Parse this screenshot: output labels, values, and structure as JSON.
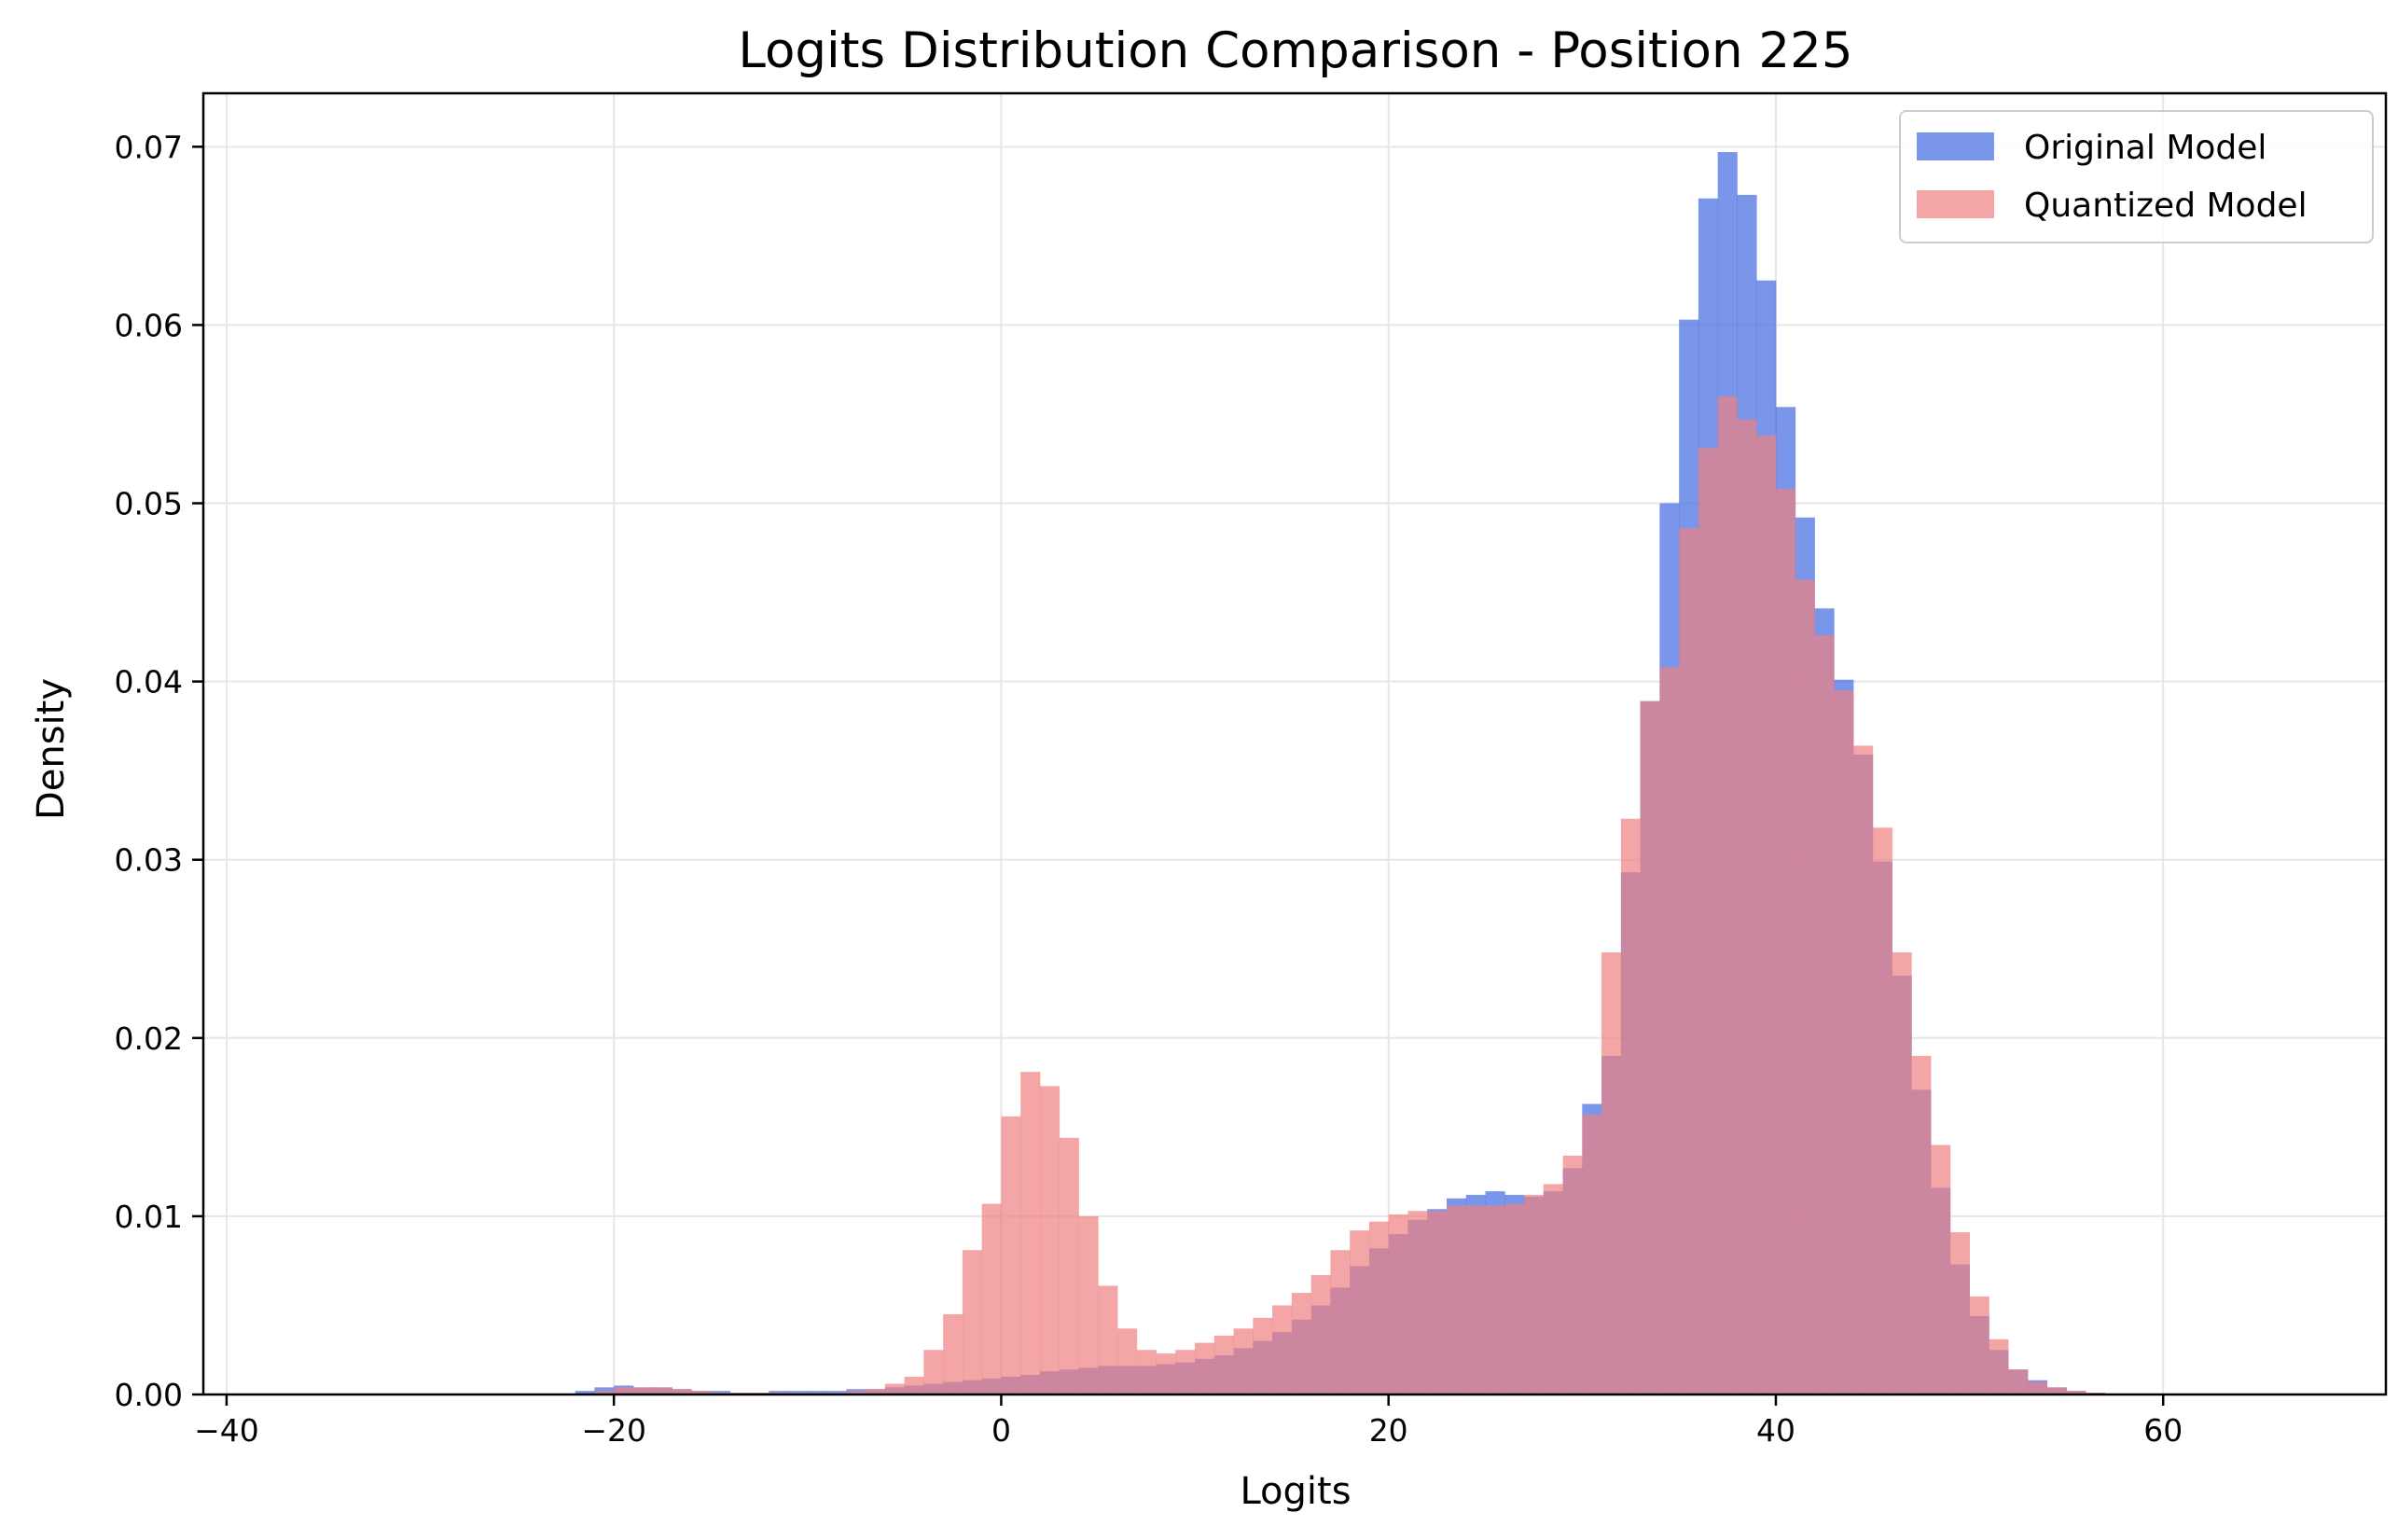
{
  "chart_data": {
    "type": "histogram",
    "title": "Logits Distribution Comparison - Position 225",
    "xlabel": "Logits",
    "ylabel": "Density",
    "xlim": [
      -41.2,
      71.5
    ],
    "ylim": [
      0,
      0.073
    ],
    "x_ticks": [
      -40,
      -20,
      0,
      20,
      40,
      60
    ],
    "x_tick_labels": [
      "−40",
      "−20",
      "0",
      "20",
      "40",
      "60"
    ],
    "y_ticks": [
      0,
      0.01,
      0.02,
      0.03,
      0.04,
      0.05,
      0.06,
      0.07
    ],
    "y_tick_labels": [
      "0.00",
      "0.01",
      "0.02",
      "0.03",
      "0.04",
      "0.05",
      "0.06",
      "0.07"
    ],
    "grid": true,
    "legend_position": "top-right",
    "series": [
      {
        "name": "Original Model",
        "color": "#4169e1",
        "opacity": 0.7,
        "bins": [
          {
            "x0": -22,
            "x1": -21,
            "y": 0.0002
          },
          {
            "x0": -21,
            "x1": -20,
            "y": 0.0004
          },
          {
            "x0": -20,
            "x1": -19,
            "y": 0.0005
          },
          {
            "x0": -19,
            "x1": -18,
            "y": 0.0004
          },
          {
            "x0": -18,
            "x1": -17,
            "y": 0.0004
          },
          {
            "x0": -17,
            "x1": -16,
            "y": 0.0003
          },
          {
            "x0": -16,
            "x1": -15,
            "y": 0.0002
          },
          {
            "x0": -15,
            "x1": -14,
            "y": 0.0002
          },
          {
            "x0": -14,
            "x1": -13,
            "y": 0.0001
          },
          {
            "x0": -13,
            "x1": -12,
            "y": 0.0001
          },
          {
            "x0": -12,
            "x1": -11,
            "y": 0.0002
          },
          {
            "x0": -11,
            "x1": -10,
            "y": 0.0002
          },
          {
            "x0": -10,
            "x1": -9,
            "y": 0.0002
          },
          {
            "x0": -9,
            "x1": -8,
            "y": 0.0002
          },
          {
            "x0": -8,
            "x1": -7,
            "y": 0.0003
          },
          {
            "x0": -7,
            "x1": -6,
            "y": 0.0003
          },
          {
            "x0": -6,
            "x1": -5,
            "y": 0.0004
          },
          {
            "x0": -5,
            "x1": -4,
            "y": 0.0005
          },
          {
            "x0": -4,
            "x1": -3,
            "y": 0.0006
          },
          {
            "x0": -3,
            "x1": -2,
            "y": 0.0007
          },
          {
            "x0": -2,
            "x1": -1,
            "y": 0.0008
          },
          {
            "x0": -1,
            "x1": 0,
            "y": 0.0009
          },
          {
            "x0": 0,
            "x1": 1,
            "y": 0.001
          },
          {
            "x0": 1,
            "x1": 2,
            "y": 0.0011
          },
          {
            "x0": 2,
            "x1": 3,
            "y": 0.0013
          },
          {
            "x0": 3,
            "x1": 4,
            "y": 0.0014
          },
          {
            "x0": 4,
            "x1": 5,
            "y": 0.0015
          },
          {
            "x0": 5,
            "x1": 6,
            "y": 0.0016
          },
          {
            "x0": 6,
            "x1": 7,
            "y": 0.0016
          },
          {
            "x0": 7,
            "x1": 8,
            "y": 0.0016
          },
          {
            "x0": 8,
            "x1": 9,
            "y": 0.0017
          },
          {
            "x0": 9,
            "x1": 10,
            "y": 0.0018
          },
          {
            "x0": 10,
            "x1": 11,
            "y": 0.002
          },
          {
            "x0": 11,
            "x1": 12,
            "y": 0.0022
          },
          {
            "x0": 12,
            "x1": 13,
            "y": 0.0026
          },
          {
            "x0": 13,
            "x1": 14,
            "y": 0.003
          },
          {
            "x0": 14,
            "x1": 15,
            "y": 0.0035
          },
          {
            "x0": 15,
            "x1": 16,
            "y": 0.0042
          },
          {
            "x0": 16,
            "x1": 17,
            "y": 0.005
          },
          {
            "x0": 17,
            "x1": 18,
            "y": 0.006
          },
          {
            "x0": 18,
            "x1": 19,
            "y": 0.0072
          },
          {
            "x0": 19,
            "x1": 20,
            "y": 0.0082
          },
          {
            "x0": 20,
            "x1": 21,
            "y": 0.009
          },
          {
            "x0": 21,
            "x1": 22,
            "y": 0.0098
          },
          {
            "x0": 22,
            "x1": 23,
            "y": 0.0104
          },
          {
            "x0": 23,
            "x1": 24,
            "y": 0.011
          },
          {
            "x0": 24,
            "x1": 25,
            "y": 0.0112
          },
          {
            "x0": 25,
            "x1": 26,
            "y": 0.0114
          },
          {
            "x0": 26,
            "x1": 27,
            "y": 0.0112
          },
          {
            "x0": 27,
            "x1": 28,
            "y": 0.0111
          },
          {
            "x0": 28,
            "x1": 29,
            "y": 0.0114
          },
          {
            "x0": 29,
            "x1": 30,
            "y": 0.0127
          },
          {
            "x0": 30,
            "x1": 31,
            "y": 0.0163
          },
          {
            "x0": 31,
            "x1": 32,
            "y": 0.019
          },
          {
            "x0": 32,
            "x1": 33,
            "y": 0.0293
          },
          {
            "x0": 33,
            "x1": 34,
            "y": 0.0389
          },
          {
            "x0": 34,
            "x1": 35,
            "y": 0.05
          },
          {
            "x0": 35,
            "x1": 36,
            "y": 0.0603
          },
          {
            "x0": 36,
            "x1": 37,
            "y": 0.0671
          },
          {
            "x0": 37,
            "x1": 38,
            "y": 0.0697
          },
          {
            "x0": 38,
            "x1": 39,
            "y": 0.0673
          },
          {
            "x0": 39,
            "x1": 40,
            "y": 0.0625
          },
          {
            "x0": 40,
            "x1": 41,
            "y": 0.0554
          },
          {
            "x0": 41,
            "x1": 42,
            "y": 0.0492
          },
          {
            "x0": 42,
            "x1": 43,
            "y": 0.0441
          },
          {
            "x0": 43,
            "x1": 44,
            "y": 0.0401
          },
          {
            "x0": 44,
            "x1": 45,
            "y": 0.0359
          },
          {
            "x0": 45,
            "x1": 46,
            "y": 0.0299
          },
          {
            "x0": 46,
            "x1": 47,
            "y": 0.0235
          },
          {
            "x0": 47,
            "x1": 48,
            "y": 0.0171
          },
          {
            "x0": 48,
            "x1": 49,
            "y": 0.0116
          },
          {
            "x0": 49,
            "x1": 50,
            "y": 0.0073
          },
          {
            "x0": 50,
            "x1": 51,
            "y": 0.0044
          },
          {
            "x0": 51,
            "x1": 52,
            "y": 0.0025
          },
          {
            "x0": 52,
            "x1": 53,
            "y": 0.0014
          },
          {
            "x0": 53,
            "x1": 54,
            "y": 0.0008
          },
          {
            "x0": 54,
            "x1": 55,
            "y": 0.0004
          },
          {
            "x0": 55,
            "x1": 56,
            "y": 0.0002
          },
          {
            "x0": 56,
            "x1": 57,
            "y": 0.0001
          }
        ]
      },
      {
        "name": "Quantized Model",
        "color": "#f08080",
        "opacity": 0.7,
        "bins": [
          {
            "x0": -21,
            "x1": -20,
            "y": 0.0002
          },
          {
            "x0": -20,
            "x1": -19,
            "y": 0.0004
          },
          {
            "x0": -19,
            "x1": -18,
            "y": 0.0004
          },
          {
            "x0": -18,
            "x1": -17,
            "y": 0.0004
          },
          {
            "x0": -17,
            "x1": -16,
            "y": 0.0003
          },
          {
            "x0": -16,
            "x1": -15,
            "y": 0.0002
          },
          {
            "x0": -15,
            "x1": -14,
            "y": 0.0001
          },
          {
            "x0": -14,
            "x1": -13,
            "y": 0.0001
          },
          {
            "x0": -13,
            "x1": -12,
            "y": 0.0001
          },
          {
            "x0": -12,
            "x1": -11,
            "y": 0.0001
          },
          {
            "x0": -11,
            "x1": -10,
            "y": 0.0001
          },
          {
            "x0": -10,
            "x1": -9,
            "y": 0.0001
          },
          {
            "x0": -9,
            "x1": -8,
            "y": 0.0001
          },
          {
            "x0": -8,
            "x1": -7,
            "y": 0.0002
          },
          {
            "x0": -7,
            "x1": -6,
            "y": 0.0003
          },
          {
            "x0": -6,
            "x1": -5,
            "y": 0.0006
          },
          {
            "x0": -5,
            "x1": -4,
            "y": 0.001
          },
          {
            "x0": -4,
            "x1": -3,
            "y": 0.0025
          },
          {
            "x0": -3,
            "x1": -2,
            "y": 0.0045
          },
          {
            "x0": -2,
            "x1": -1,
            "y": 0.0081
          },
          {
            "x0": -1,
            "x1": 0,
            "y": 0.0107
          },
          {
            "x0": 0,
            "x1": 1,
            "y": 0.0156
          },
          {
            "x0": 1,
            "x1": 2,
            "y": 0.0181
          },
          {
            "x0": 2,
            "x1": 3,
            "y": 0.0173
          },
          {
            "x0": 3,
            "x1": 4,
            "y": 0.0144
          },
          {
            "x0": 4,
            "x1": 5,
            "y": 0.01
          },
          {
            "x0": 5,
            "x1": 6,
            "y": 0.0061
          },
          {
            "x0": 6,
            "x1": 7,
            "y": 0.0037
          },
          {
            "x0": 7,
            "x1": 8,
            "y": 0.0025
          },
          {
            "x0": 8,
            "x1": 9,
            "y": 0.0023
          },
          {
            "x0": 9,
            "x1": 10,
            "y": 0.0025
          },
          {
            "x0": 10,
            "x1": 11,
            "y": 0.0029
          },
          {
            "x0": 11,
            "x1": 12,
            "y": 0.0033
          },
          {
            "x0": 12,
            "x1": 13,
            "y": 0.0037
          },
          {
            "x0": 13,
            "x1": 14,
            "y": 0.0043
          },
          {
            "x0": 14,
            "x1": 15,
            "y": 0.005
          },
          {
            "x0": 15,
            "x1": 16,
            "y": 0.0057
          },
          {
            "x0": 16,
            "x1": 17,
            "y": 0.0067
          },
          {
            "x0": 17,
            "x1": 18,
            "y": 0.0081
          },
          {
            "x0": 18,
            "x1": 19,
            "y": 0.0092
          },
          {
            "x0": 19,
            "x1": 20,
            "y": 0.0097
          },
          {
            "x0": 20,
            "x1": 21,
            "y": 0.0101
          },
          {
            "x0": 21,
            "x1": 22,
            "y": 0.0103
          },
          {
            "x0": 22,
            "x1": 23,
            "y": 0.0103
          },
          {
            "x0": 23,
            "x1": 24,
            "y": 0.0106
          },
          {
            "x0": 24,
            "x1": 25,
            "y": 0.0106
          },
          {
            "x0": 25,
            "x1": 26,
            "y": 0.0106
          },
          {
            "x0": 26,
            "x1": 27,
            "y": 0.0107
          },
          {
            "x0": 27,
            "x1": 28,
            "y": 0.0112
          },
          {
            "x0": 28,
            "x1": 29,
            "y": 0.0118
          },
          {
            "x0": 29,
            "x1": 30,
            "y": 0.0134
          },
          {
            "x0": 30,
            "x1": 31,
            "y": 0.0157
          },
          {
            "x0": 31,
            "x1": 32,
            "y": 0.0248
          },
          {
            "x0": 32,
            "x1": 33,
            "y": 0.0323
          },
          {
            "x0": 33,
            "x1": 34,
            "y": 0.0389
          },
          {
            "x0": 34,
            "x1": 35,
            "y": 0.0408
          },
          {
            "x0": 35,
            "x1": 36,
            "y": 0.0486
          },
          {
            "x0": 36,
            "x1": 37,
            "y": 0.0531
          },
          {
            "x0": 37,
            "x1": 38,
            "y": 0.056
          },
          {
            "x0": 38,
            "x1": 39,
            "y": 0.0547
          },
          {
            "x0": 39,
            "x1": 40,
            "y": 0.0538
          },
          {
            "x0": 40,
            "x1": 41,
            "y": 0.0508
          },
          {
            "x0": 41,
            "x1": 42,
            "y": 0.0457
          },
          {
            "x0": 42,
            "x1": 43,
            "y": 0.0426
          },
          {
            "x0": 43,
            "x1": 44,
            "y": 0.0395
          },
          {
            "x0": 44,
            "x1": 45,
            "y": 0.0364
          },
          {
            "x0": 45,
            "x1": 46,
            "y": 0.0318
          },
          {
            "x0": 46,
            "x1": 47,
            "y": 0.0248
          },
          {
            "x0": 47,
            "x1": 48,
            "y": 0.019
          },
          {
            "x0": 48,
            "x1": 49,
            "y": 0.014
          },
          {
            "x0": 49,
            "x1": 50,
            "y": 0.0091
          },
          {
            "x0": 50,
            "x1": 51,
            "y": 0.0055
          },
          {
            "x0": 51,
            "x1": 52,
            "y": 0.0031
          },
          {
            "x0": 52,
            "x1": 53,
            "y": 0.0014
          },
          {
            "x0": 53,
            "x1": 54,
            "y": 0.0007
          },
          {
            "x0": 54,
            "x1": 55,
            "y": 0.0004
          },
          {
            "x0": 55,
            "x1": 56,
            "y": 0.0002
          },
          {
            "x0": 56,
            "x1": 57,
            "y": 0.0001
          }
        ]
      }
    ]
  }
}
